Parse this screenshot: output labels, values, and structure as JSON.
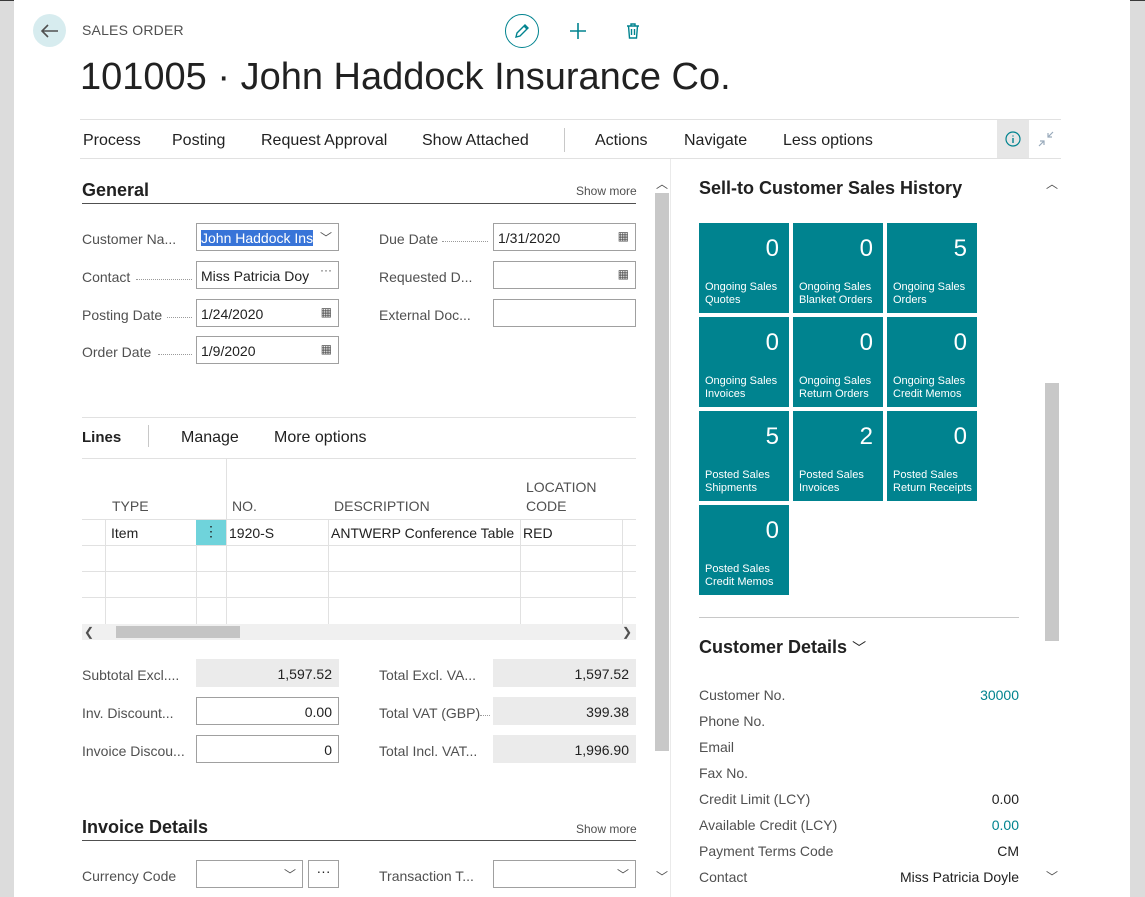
{
  "header": {
    "breadcrumb": "SALES ORDER",
    "title": "101005 · John Haddock Insurance Co."
  },
  "actions": [
    "Process",
    "Posting",
    "Request Approval",
    "Show Attached",
    "Actions",
    "Navigate",
    "Less options"
  ],
  "general": {
    "title": "General",
    "show_more": "Show more",
    "fields": {
      "customer_name": {
        "label": "Customer Na...",
        "value": "John Haddock Ins"
      },
      "contact": {
        "label": "Contact",
        "value": "Miss Patricia Doy"
      },
      "posting_date": {
        "label": "Posting Date",
        "value": "1/24/2020"
      },
      "order_date": {
        "label": "Order Date",
        "value": "1/9/2020"
      },
      "due_date": {
        "label": "Due Date",
        "value": "1/31/2020"
      },
      "requested_date": {
        "label": "Requested D...",
        "value": ""
      },
      "external_doc": {
        "label": "External Doc...",
        "value": ""
      }
    }
  },
  "lines": {
    "title": "Lines",
    "actions": [
      "Manage",
      "More options"
    ],
    "columns": [
      "TYPE",
      "NO.",
      "DESCRIPTION",
      "LOCATION CODE"
    ],
    "rows": [
      {
        "type": "Item",
        "no": "1920-S",
        "description": "ANTWERP Conference Table",
        "location": "RED"
      }
    ]
  },
  "totals": {
    "subtotal": {
      "label": "Subtotal Excl....",
      "value": "1,597.52"
    },
    "inv_discount": {
      "label": "Inv. Discount...",
      "value": "0.00"
    },
    "invoice_discount": {
      "label": "Invoice Discou...",
      "value": "0"
    },
    "total_excl": {
      "label": "Total Excl. VA...",
      "value": "1,597.52"
    },
    "total_vat": {
      "label": "Total VAT (GBP)",
      "value": "399.38"
    },
    "total_incl": {
      "label": "Total Incl. VAT...",
      "value": "1,996.90"
    }
  },
  "invoice_details": {
    "title": "Invoice Details",
    "show_more": "Show more",
    "currency_label": "Currency Code",
    "transaction_label": "Transaction T..."
  },
  "factbox": {
    "history_title": "Sell-to Customer Sales History",
    "tiles": [
      {
        "value": "0",
        "label": "Ongoing Sales Quotes"
      },
      {
        "value": "0",
        "label": "Ongoing Sales Blanket Orders"
      },
      {
        "value": "5",
        "label": "Ongoing Sales Orders"
      },
      {
        "value": "0",
        "label": "Ongoing Sales Invoices"
      },
      {
        "value": "0",
        "label": "Ongoing Sales Return Orders"
      },
      {
        "value": "0",
        "label": "Ongoing Sales Credit Memos"
      },
      {
        "value": "5",
        "label": "Posted Sales Shipments"
      },
      {
        "value": "2",
        "label": "Posted Sales Invoices"
      },
      {
        "value": "0",
        "label": "Posted Sales Return Receipts"
      },
      {
        "value": "0",
        "label": "Posted Sales Credit Memos"
      }
    ],
    "customer_details_title": "Customer Details",
    "details": [
      {
        "label": "Customer No.",
        "value": "30000"
      },
      {
        "label": "Phone No.",
        "value": ""
      },
      {
        "label": "Email",
        "value": ""
      },
      {
        "label": "Fax No.",
        "value": ""
      },
      {
        "label": "Credit Limit (LCY)",
        "value": "0.00"
      },
      {
        "label": "Available Credit (LCY)",
        "value": "0.00"
      },
      {
        "label": "Payment Terms Code",
        "value": "CM"
      },
      {
        "label": "Contact",
        "value": "Miss Patricia Doyle"
      }
    ]
  },
  "colors": {
    "accent": "#00838f",
    "tile": "#00838f",
    "selection": "#3874d8"
  }
}
